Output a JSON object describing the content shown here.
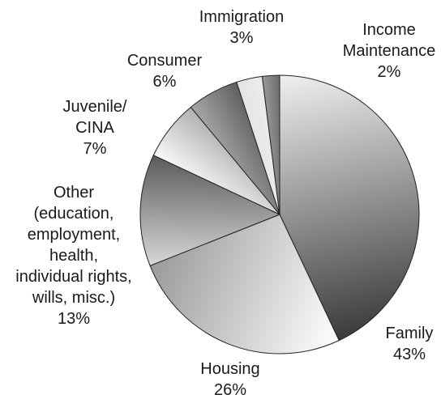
{
  "chart_data": {
    "type": "pie",
    "slices": [
      {
        "label": "Family",
        "value": 43,
        "percent_label": "43%",
        "label_lines": [
          "Family"
        ]
      },
      {
        "label": "Housing",
        "value": 26,
        "percent_label": "26%",
        "label_lines": [
          "Housing"
        ]
      },
      {
        "label": "Other (education, employment, health, individual rights, wills, misc.)",
        "value": 13,
        "percent_label": "13%",
        "label_lines": [
          "Other",
          "(education,",
          "employment,",
          "health,",
          "individual rights,",
          "wills, misc.)"
        ]
      },
      {
        "label": "Juvenile/ CINA",
        "value": 7,
        "percent_label": "7%",
        "label_lines": [
          "Juvenile/",
          "CINA"
        ]
      },
      {
        "label": "Consumer",
        "value": 6,
        "percent_label": "6%",
        "label_lines": [
          "Consumer"
        ]
      },
      {
        "label": "Immigration",
        "value": 3,
        "percent_label": "3%",
        "label_lines": [
          "Immigration"
        ]
      },
      {
        "label": "Income Maintenance",
        "value": 2,
        "percent_label": "2%",
        "label_lines": [
          "Income",
          "Maintenance"
        ]
      }
    ],
    "start": "12 o'clock",
    "direction": "clockwise",
    "colors": {
      "Family": [
        "#f0f0f0",
        "#3a3a3a"
      ],
      "Housing": [
        "#ffffff",
        "#9a9a9a"
      ],
      "Other (education, employment, health, individual rights, wills, misc.)": [
        "#d8d8d8",
        "#5a5a5a"
      ],
      "Juvenile/ CINA": [
        "#fafafa",
        "#b0b0b0"
      ],
      "Consumer": [
        "#a8a8a8",
        "#5f5f5f"
      ],
      "Immigration": [
        "#e4e4e4",
        "#ececec"
      ],
      "Income Maintenance": [
        "#9a9a9a",
        "#6a6a6a"
      ]
    }
  }
}
